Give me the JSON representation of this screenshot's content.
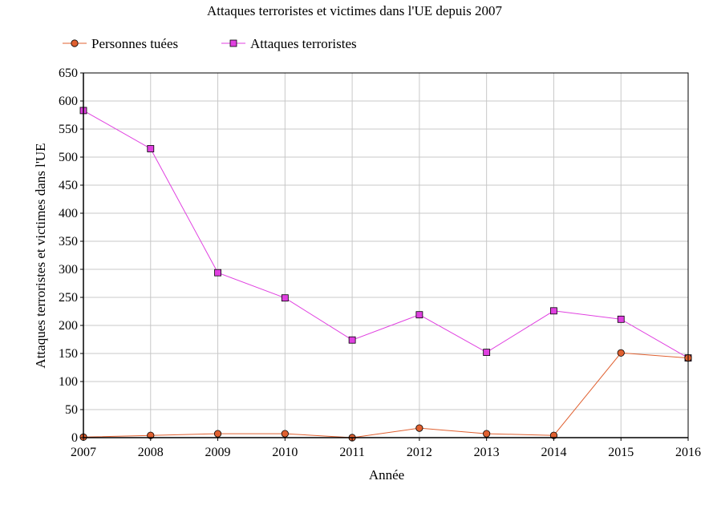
{
  "chart_data": {
    "type": "line",
    "title": "Attaques terroristes et victimes dans l'UE depuis 2007",
    "xlabel": "Année",
    "ylabel": "Attaques terroristes et victimes dans l'UE",
    "x": [
      2007,
      2008,
      2009,
      2010,
      2011,
      2012,
      2013,
      2014,
      2015,
      2016
    ],
    "xlim": [
      2007,
      2016
    ],
    "ylim": [
      0,
      650
    ],
    "yticks": [
      0,
      50,
      100,
      150,
      200,
      250,
      300,
      350,
      400,
      450,
      500,
      550,
      600,
      650
    ],
    "grid": true,
    "legend_position": "top-left",
    "series": [
      {
        "name": "Personnes tuées",
        "color": "#e06030",
        "marker": "circle",
        "values": [
          1,
          4,
          7,
          7,
          0,
          17,
          7,
          4,
          151,
          142
        ]
      },
      {
        "name": "Attaques terroristes",
        "color": "#e040e0",
        "marker": "square",
        "values": [
          583,
          515,
          294,
          249,
          174,
          219,
          152,
          226,
          211,
          142
        ]
      }
    ]
  }
}
